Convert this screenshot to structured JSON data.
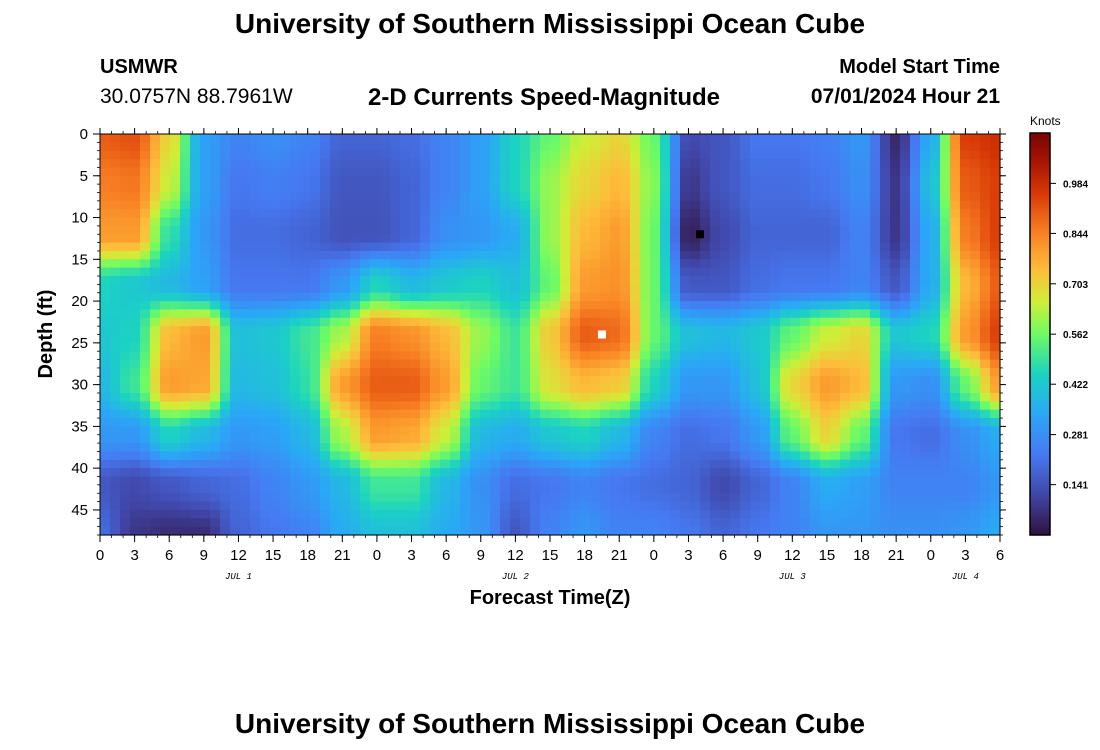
{
  "header": {
    "title": "University of Southern Mississippi Ocean Cube",
    "station": "USMWR",
    "coordinates": "30.0757N  88.7961W",
    "subtitle": "2-D Currents Speed-Magnitude",
    "model_start_label": "Model Start Time",
    "model_start_value": "07/01/2024 Hour 21"
  },
  "footer": {
    "title": "University of Southern Mississippi Ocean Cube"
  },
  "chart_data": {
    "type": "heatmap",
    "title": "2-D Currents Speed-Magnitude",
    "xlabel": "Forecast Time(Z)",
    "ylabel": "Depth (ft)",
    "x_unit": "hours since 07/01/2024 00Z",
    "xlim": [
      0,
      78
    ],
    "ylim": [
      48,
      0
    ],
    "x_ticks": [
      "0",
      "3",
      "6",
      "9",
      "12",
      "15",
      "18",
      "21",
      "0",
      "3",
      "6",
      "9",
      "12",
      "15",
      "18",
      "21",
      "0",
      "3",
      "6",
      "9",
      "12",
      "15",
      "18",
      "21",
      "0",
      "3",
      "6"
    ],
    "y_ticks": [
      0,
      5,
      10,
      15,
      20,
      25,
      30,
      35,
      40,
      45
    ],
    "date_labels": [
      {
        "label": "JUL 1",
        "x": 12
      },
      {
        "label": "JUL 2",
        "x": 36
      },
      {
        "label": "JUL 3",
        "x": 60
      },
      {
        "label": "JUL 4",
        "x": 75
      }
    ],
    "colorbar": {
      "unit": "Knots",
      "min": 0.0,
      "max": 1.125,
      "ticks": [
        "0.984",
        "0.844",
        "0.703",
        "0.562",
        "0.422",
        "0.281",
        "0.141"
      ],
      "tick_values": [
        0.984,
        0.844,
        0.703,
        0.562,
        0.422,
        0.281,
        0.141
      ]
    },
    "depths": [
      0,
      6,
      12,
      18,
      24,
      30,
      36,
      42,
      48
    ],
    "times": [
      0,
      3,
      6,
      9,
      12,
      15,
      18,
      21,
      24,
      27,
      30,
      33,
      36,
      39,
      42,
      45,
      48,
      51,
      54,
      57,
      60,
      63,
      66,
      69,
      72,
      75,
      78
    ],
    "speed": [
      [
        0.9,
        0.92,
        0.7,
        0.32,
        0.25,
        0.28,
        0.25,
        0.18,
        0.18,
        0.2,
        0.25,
        0.32,
        0.45,
        0.55,
        0.65,
        0.7,
        0.55,
        0.12,
        0.15,
        0.22,
        0.22,
        0.24,
        0.3,
        0.05,
        0.35,
        0.95,
        0.98
      ],
      [
        0.85,
        0.86,
        0.65,
        0.32,
        0.22,
        0.24,
        0.22,
        0.15,
        0.15,
        0.18,
        0.25,
        0.32,
        0.45,
        0.6,
        0.7,
        0.75,
        0.58,
        0.08,
        0.15,
        0.2,
        0.2,
        0.22,
        0.28,
        0.08,
        0.4,
        0.9,
        0.95
      ],
      [
        0.8,
        0.8,
        0.48,
        0.3,
        0.2,
        0.2,
        0.18,
        0.14,
        0.14,
        0.18,
        0.28,
        0.3,
        0.35,
        0.6,
        0.75,
        0.8,
        0.55,
        0.03,
        0.12,
        0.18,
        0.18,
        0.18,
        0.25,
        0.08,
        0.35,
        0.85,
        0.95
      ],
      [
        0.45,
        0.42,
        0.38,
        0.32,
        0.22,
        0.22,
        0.22,
        0.3,
        0.45,
        0.38,
        0.42,
        0.45,
        0.4,
        0.55,
        0.8,
        0.82,
        0.55,
        0.15,
        0.15,
        0.2,
        0.22,
        0.22,
        0.25,
        0.15,
        0.35,
        0.75,
        0.9
      ],
      [
        0.42,
        0.45,
        0.75,
        0.8,
        0.4,
        0.42,
        0.5,
        0.62,
        0.85,
        0.82,
        0.75,
        0.6,
        0.5,
        0.72,
        0.9,
        0.88,
        0.55,
        0.4,
        0.38,
        0.42,
        0.55,
        0.65,
        0.7,
        0.42,
        0.45,
        0.8,
        0.95
      ],
      [
        0.38,
        0.5,
        0.8,
        0.78,
        0.38,
        0.4,
        0.48,
        0.8,
        0.9,
        0.9,
        0.8,
        0.55,
        0.5,
        0.68,
        0.75,
        0.72,
        0.45,
        0.3,
        0.3,
        0.4,
        0.7,
        0.8,
        0.75,
        0.3,
        0.28,
        0.55,
        0.8
      ],
      [
        0.3,
        0.3,
        0.45,
        0.38,
        0.3,
        0.32,
        0.38,
        0.62,
        0.8,
        0.78,
        0.65,
        0.38,
        0.35,
        0.42,
        0.45,
        0.38,
        0.25,
        0.2,
        0.22,
        0.3,
        0.55,
        0.7,
        0.55,
        0.22,
        0.2,
        0.28,
        0.35
      ],
      [
        0.15,
        0.12,
        0.15,
        0.18,
        0.2,
        0.25,
        0.3,
        0.38,
        0.5,
        0.5,
        0.38,
        0.28,
        0.2,
        0.22,
        0.25,
        0.22,
        0.2,
        0.18,
        0.12,
        0.18,
        0.25,
        0.35,
        0.32,
        0.25,
        0.25,
        0.25,
        0.3
      ],
      [
        0.2,
        0.08,
        0.06,
        0.06,
        0.18,
        0.22,
        0.25,
        0.35,
        0.4,
        0.4,
        0.35,
        0.3,
        0.15,
        0.25,
        0.3,
        0.25,
        0.25,
        0.22,
        0.18,
        0.22,
        0.25,
        0.3,
        0.3,
        0.28,
        0.28,
        0.3,
        0.35
      ]
    ],
    "markers": [
      {
        "color": "#ffffff",
        "x": 43.5,
        "depth": 24
      },
      {
        "color": "#000000",
        "x": 52,
        "depth": 12
      }
    ]
  }
}
